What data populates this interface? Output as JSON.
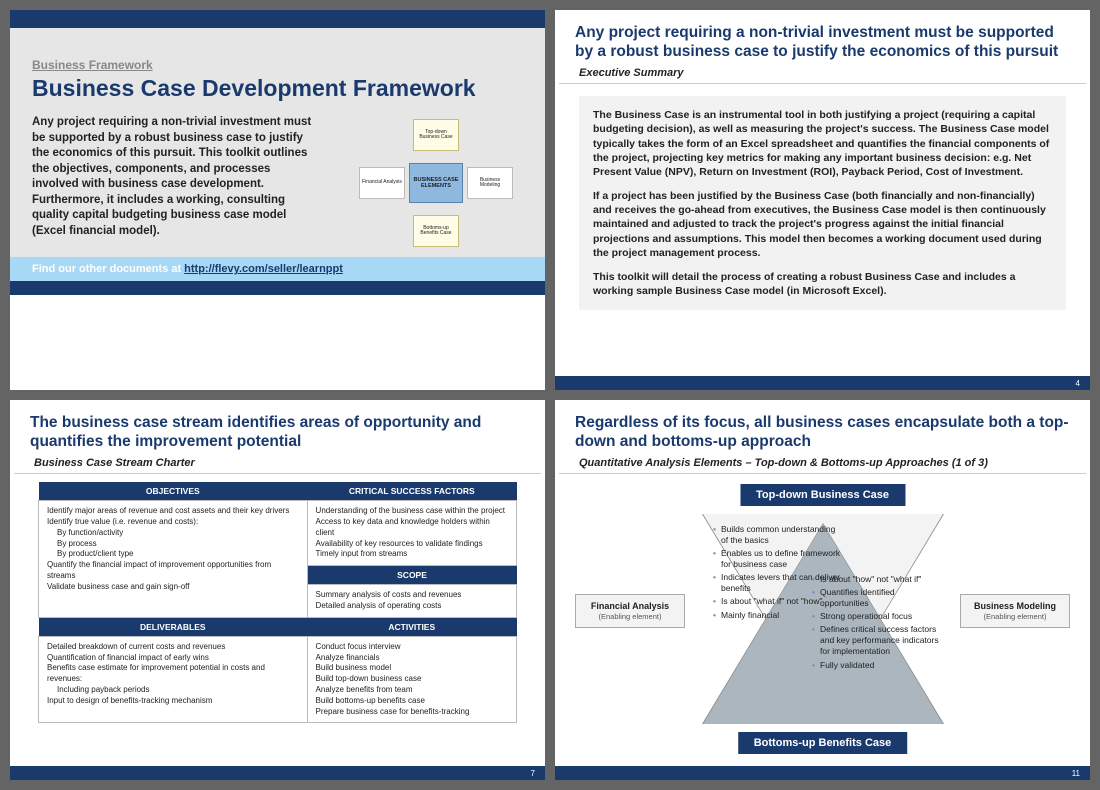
{
  "colors": {
    "brand_dark": "#1a3a6e",
    "bg_gray": "#e6e6e6",
    "find_bar": "#a7d8f5",
    "page_bg": "#646464"
  },
  "slide1": {
    "eyebrow": "Business Framework",
    "title": "Business Case Development Framework",
    "desc": "Any project requiring a non-trivial investment must be supported by a robust business case to justify the economics of this pursuit. This toolkit outlines the objectives, components, and processes involved with business case development. Furthermore, it includes a working, consulting quality capital budgeting business case model (Excel financial model).",
    "find_prefix": "Find our other documents at ",
    "find_link": "http://flevy.com/seller/learnppt",
    "diagram": {
      "center": "BUSINESS CASE ELEMENTS",
      "top": "Top-down Business Case",
      "bottom": "Bottoms-up Benefits Case",
      "left": "Financial Analysis",
      "right": "Business Modeling"
    }
  },
  "slide2": {
    "headline": "Any project requiring a non-trivial investment must be supported by a robust business case to justify the economics of this pursuit",
    "subhead": "Executive Summary",
    "p1": "The Business Case is an instrumental tool in both justifying a project (requiring a capital budgeting decision), as well as measuring the project's success.  The Business Case model typically takes the form of an Excel spreadsheet and quantifies the financial components of the project, projecting key metrics for making any important business decision: e.g. Net Present Value (NPV), Return on Investment (ROI), Payback Period, Cost of Investment.",
    "p2": "If a project has been justified by the Business Case (both financially and non-financially) and receives the go-ahead from executives, the Business Case model is then continuously maintained and adjusted to track the project's progress against the initial financial projections and assumptions.  This model then becomes a working document used during the project management process.",
    "p3": "This toolkit will detail the process of creating a robust Business Case and includes a working sample Business Case model (in Microsoft Excel).",
    "page": "4"
  },
  "slide3": {
    "headline": "The business case stream identifies areas of opportunity and quantifies the improvement potential",
    "subhead": "Business Case Stream Charter",
    "th_obj": "OBJECTIVES",
    "th_csf": "CRITICAL SUCCESS FACTORS",
    "th_scope": "SCOPE",
    "th_del": "DELIVERABLES",
    "th_act": "ACTIVITIES",
    "objectives": "Identify major areas of revenue and cost assets and their key drivers\nIdentify true value (i.e. revenue and costs):\n  By function/activity\n  By process\n  By product/client type\nQuantify the financial impact of improvement opportunities from streams\nValidate business case and gain sign-off",
    "csf": "Understanding of the business case within the project\nAccess to key data and knowledge holders within client\nAvailability of key resources to validate findings\nTimely input from streams",
    "scope": "Summary analysis of costs and revenues\nDetailed analysis of operating costs",
    "deliverables": "Detailed breakdown of current costs and revenues\nQuantification of financial impact of early wins\nBenefits case estimate for improvement potential in costs and revenues:\n  Including payback periods\nInput to design of benefits-tracking mechanism",
    "activities": "Conduct focus interview\nAnalyze financials\nBuild business model\nBuild top-down business case\nAnalyze benefits from team\nBuild bottoms-up benefits case\nPrepare business case for benefits-tracking",
    "page": "7"
  },
  "slide4": {
    "headline": "Regardless of its focus, all business cases encapsulate both a top-down and bottoms-up approach",
    "subhead": "Quantitative Analysis Elements – Top-down & Bottoms-up Approaches (1 of 3)",
    "top_banner": "Top-down Business Case",
    "bottom_banner": "Bottoms-up Benefits Case",
    "left_arrow_t": "Financial Analysis",
    "left_arrow_s": "(Enabling element)",
    "right_arrow_t": "Business Modeling",
    "right_arrow_s": "(Enabling element)",
    "left_b1": "Builds common understanding of the basics",
    "left_b2": "Enables us to define framework for business case",
    "left_b3": "Indicates levers that can deliver benefits",
    "left_b4": "Is about \"what if\" not \"how\"",
    "left_b5": "Mainly financial",
    "right_b1": "Is about \"how\" not \"what if\"",
    "right_b2": "Quantifies identified opportunities",
    "right_b3": "Strong operational focus",
    "right_b4": "Defines critical success factors and key performance indicators for implementation",
    "right_b5": "Fully validated",
    "page": "11"
  }
}
